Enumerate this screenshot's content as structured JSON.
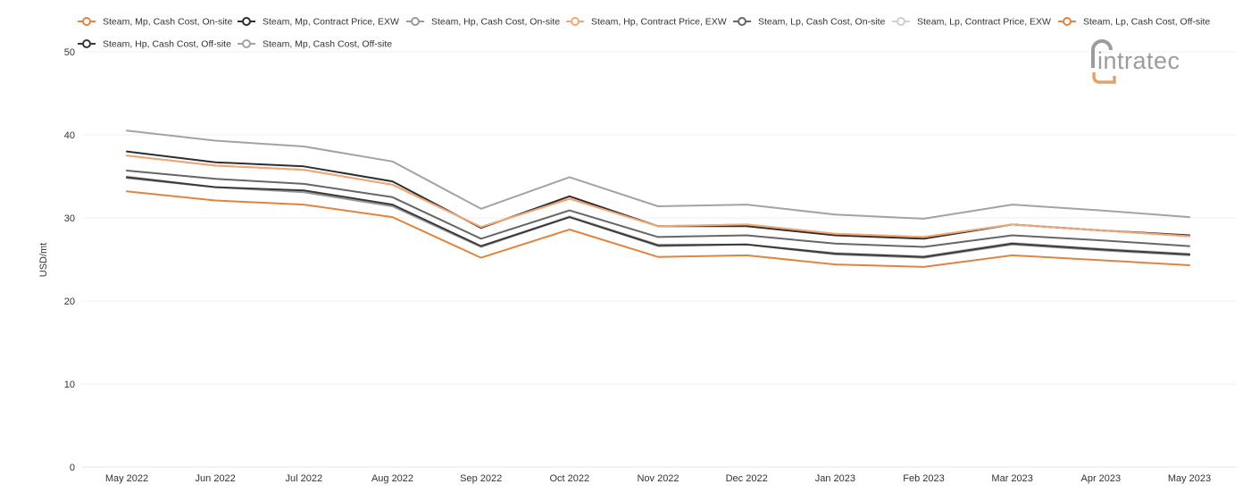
{
  "brand": {
    "logo_text": "intratec",
    "logo_gray": "#9c9c9c",
    "logo_orange": "#e6a06a"
  },
  "chart_data": {
    "type": "line",
    "title": "",
    "xlabel": "",
    "ylabel": "USD/mt",
    "ylim": [
      0,
      50
    ],
    "yticks": [
      "0",
      "10",
      "20",
      "30",
      "40",
      "50"
    ],
    "grid": true,
    "legend_position": "top",
    "x": [
      "May 2022",
      "Jun 2022",
      "Jul 2022",
      "Aug 2022",
      "Sep 2022",
      "Oct 2022",
      "Nov 2022",
      "Dec 2022",
      "Jan 2023",
      "Feb 2023",
      "Mar 2023",
      "Apr 2023",
      "May 2023"
    ],
    "series": [
      {
        "name": "Steam, Mp, Cash Cost, On-site",
        "color": "#e0843e",
        "values": [
          37.5,
          36.3,
          35.8,
          34.0,
          28.9,
          32.3,
          29.0,
          29.2,
          28.1,
          27.7,
          29.2,
          28.5,
          27.8
        ]
      },
      {
        "name": "Steam, Mp, Contract Price, EXW",
        "color": "#2e2e2e",
        "values": [
          38.0,
          36.7,
          36.2,
          34.4,
          28.8,
          32.6,
          29.0,
          29.0,
          27.9,
          27.5,
          29.2,
          28.5,
          27.9
        ]
      },
      {
        "name": "Steam, Hp, Cash Cost, On-site",
        "color": "#999999",
        "values": [
          34.8,
          33.7,
          33.1,
          31.4,
          26.5,
          30.1,
          26.6,
          26.8,
          25.6,
          25.2,
          26.8,
          26.1,
          25.5
        ]
      },
      {
        "name": "Steam, Hp, Contract Price, EXW",
        "color": "#f0a878",
        "values": [
          37.5,
          36.3,
          35.8,
          34.0,
          28.9,
          32.3,
          29.0,
          29.2,
          28.1,
          27.7,
          29.2,
          28.5,
          27.8
        ]
      },
      {
        "name": "Steam, Lp, Cash Cost, On-site",
        "color": "#666666",
        "values": [
          35.7,
          34.7,
          34.1,
          32.5,
          27.5,
          30.9,
          27.7,
          27.9,
          26.9,
          26.5,
          27.9,
          27.3,
          26.6
        ]
      },
      {
        "name": "Steam, Lp, Contract Price, EXW",
        "color": "#cfcfcf",
        "values": [
          35.0,
          33.7,
          33.3,
          31.6,
          26.6,
          30.2,
          26.8,
          26.8,
          25.8,
          25.4,
          27.0,
          26.3,
          25.7
        ]
      },
      {
        "name": "Steam, Lp, Cash Cost, Off-site",
        "color": "#e0843e",
        "values": [
          33.2,
          32.1,
          31.6,
          30.1,
          25.2,
          28.6,
          25.3,
          25.5,
          24.4,
          24.1,
          25.5,
          24.9,
          24.3
        ]
      },
      {
        "name": "Steam, Hp, Cash Cost, Off-site",
        "color": "#3a3a3a",
        "values": [
          34.9,
          33.7,
          33.3,
          31.6,
          26.6,
          30.1,
          26.7,
          26.8,
          25.7,
          25.3,
          26.9,
          26.2,
          25.6
        ]
      },
      {
        "name": "Steam, Mp, Cash Cost, Off-site",
        "color": "#a3a3a3",
        "values": [
          40.5,
          39.3,
          38.6,
          36.8,
          31.1,
          34.9,
          31.4,
          31.6,
          30.4,
          29.9,
          31.6,
          30.9,
          30.1
        ]
      }
    ]
  }
}
